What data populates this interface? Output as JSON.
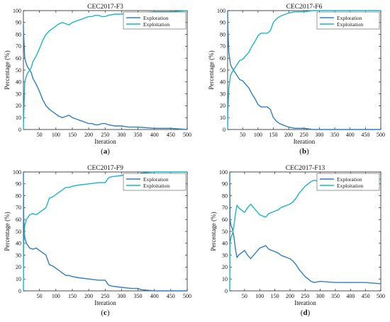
{
  "colors": {
    "exploration": "#2f7fbf",
    "exploitation": "#17b7c8"
  },
  "chart_data": [
    {
      "type": "line",
      "title": "CEC2017-F3",
      "caption_letter": "a",
      "xlabel": "Iteration",
      "ylabel": "Percentage (%)",
      "xlim": [
        1,
        500
      ],
      "ylim": [
        0,
        100
      ],
      "xticks": [
        50,
        100,
        150,
        200,
        250,
        300,
        350,
        400,
        450,
        500
      ],
      "yticks": [
        0,
        10,
        20,
        30,
        40,
        50,
        60,
        70,
        80,
        90,
        100
      ],
      "grid": false,
      "legend": "top-right",
      "series": [
        {
          "name": "Exploration",
          "x": [
            1,
            2,
            5,
            10,
            15,
            20,
            25,
            30,
            40,
            50,
            60,
            70,
            80,
            90,
            100,
            110,
            120,
            130,
            140,
            150,
            160,
            170,
            180,
            190,
            200,
            210,
            220,
            230,
            240,
            250,
            260,
            280,
            300,
            320,
            350,
            400,
            450,
            500
          ],
          "values": [
            88,
            78,
            60,
            55,
            52,
            50,
            48,
            43,
            38,
            32,
            25,
            20,
            17,
            15,
            13,
            11,
            10,
            11,
            12,
            10,
            9,
            8,
            7,
            6,
            5,
            5,
            4,
            4,
            5,
            5,
            4,
            3,
            3,
            2,
            2,
            1,
            1,
            0
          ]
        },
        {
          "name": "Exploitation",
          "x": [
            1,
            2,
            5,
            10,
            15,
            20,
            25,
            30,
            40,
            50,
            60,
            70,
            80,
            90,
            100,
            110,
            120,
            130,
            140,
            150,
            160,
            170,
            180,
            190,
            200,
            210,
            220,
            230,
            240,
            250,
            260,
            280,
            300,
            320,
            350,
            400,
            450,
            500
          ],
          "values": [
            0,
            12,
            40,
            45,
            48,
            50,
            52,
            57,
            62,
            68,
            75,
            80,
            83,
            85,
            87,
            89,
            90,
            89,
            88,
            90,
            91,
            92,
            93,
            94,
            95,
            95,
            96,
            96,
            95,
            95,
            96,
            97,
            97,
            98,
            98,
            99,
            99,
            100
          ]
        }
      ]
    },
    {
      "type": "line",
      "title": "CEC2017-F6",
      "caption_letter": "b",
      "xlabel": "Iteration",
      "ylabel": "Percentage (%)",
      "xlim": [
        1,
        500
      ],
      "ylim": [
        0,
        100
      ],
      "xticks": [
        50,
        100,
        150,
        200,
        250,
        300,
        350,
        400,
        450,
        500
      ],
      "yticks": [
        0,
        10,
        20,
        30,
        40,
        50,
        60,
        70,
        80,
        90,
        100
      ],
      "grid": false,
      "legend": "top-right",
      "series": [
        {
          "name": "Exploration",
          "x": [
            1,
            2,
            5,
            10,
            15,
            20,
            30,
            40,
            50,
            60,
            70,
            80,
            90,
            100,
            110,
            120,
            130,
            140,
            150,
            160,
            170,
            180,
            190,
            200,
            220,
            250,
            280,
            300,
            350,
            400,
            450,
            500
          ],
          "values": [
            100,
            85,
            65,
            55,
            52,
            50,
            46,
            42,
            41,
            38,
            35,
            30,
            26,
            21,
            19,
            19,
            19,
            17,
            10,
            7,
            5,
            4,
            3,
            2,
            1,
            1,
            0,
            0,
            0,
            0,
            0,
            0
          ]
        },
        {
          "name": "Exploitation",
          "x": [
            1,
            2,
            5,
            10,
            15,
            20,
            30,
            40,
            50,
            60,
            70,
            80,
            90,
            100,
            110,
            120,
            130,
            140,
            150,
            160,
            170,
            180,
            190,
            200,
            220,
            250,
            280,
            300,
            350,
            400,
            450,
            500
          ],
          "values": [
            0,
            15,
            35,
            45,
            48,
            50,
            54,
            58,
            59,
            62,
            65,
            70,
            74,
            79,
            81,
            81,
            81,
            83,
            90,
            93,
            95,
            96,
            97,
            98,
            99,
            99,
            100,
            100,
            100,
            100,
            100,
            100
          ]
        }
      ]
    },
    {
      "type": "line",
      "title": "CEC2017-F9",
      "caption_letter": "c",
      "xlabel": "Iteration",
      "ylabel": "Percentage (%)",
      "xlim": [
        1,
        500
      ],
      "ylim": [
        0,
        100
      ],
      "xticks": [
        50,
        100,
        150,
        200,
        250,
        300,
        350,
        400,
        450,
        500
      ],
      "yticks": [
        0,
        10,
        20,
        30,
        40,
        50,
        60,
        70,
        80,
        90,
        100
      ],
      "grid": false,
      "legend": "top-right",
      "series": [
        {
          "name": "Exploration",
          "x": [
            1,
            2,
            5,
            10,
            20,
            30,
            40,
            50,
            60,
            70,
            80,
            90,
            100,
            110,
            120,
            130,
            140,
            150,
            170,
            200,
            230,
            250,
            260,
            270,
            300,
            330,
            350,
            360,
            400,
            450,
            500
          ],
          "values": [
            100,
            60,
            45,
            40,
            36,
            35,
            36,
            34,
            32,
            30,
            22,
            21,
            19,
            17,
            15,
            13,
            13,
            12,
            11,
            10,
            9,
            9,
            5,
            4,
            3,
            2,
            2,
            1,
            0,
            0,
            0
          ]
        },
        {
          "name": "Exploitation",
          "x": [
            1,
            2,
            5,
            10,
            20,
            30,
            40,
            50,
            60,
            70,
            80,
            90,
            100,
            110,
            120,
            130,
            140,
            150,
            170,
            200,
            230,
            250,
            260,
            270,
            300,
            330,
            350,
            360,
            400,
            450,
            500
          ],
          "values": [
            0,
            40,
            55,
            60,
            64,
            65,
            64,
            66,
            68,
            70,
            78,
            79,
            81,
            83,
            85,
            87,
            87,
            88,
            89,
            90,
            91,
            91,
            95,
            96,
            97,
            98,
            98,
            99,
            100,
            100,
            100
          ]
        }
      ]
    },
    {
      "type": "line",
      "title": "CEC2017-F13",
      "caption_letter": "d",
      "xlabel": "Iteration",
      "ylabel": "Percentage (%)",
      "xlim": [
        1,
        500
      ],
      "ylim": [
        0,
        100
      ],
      "xticks": [
        50,
        100,
        150,
        200,
        250,
        300,
        350,
        400,
        450,
        500
      ],
      "yticks": [
        0,
        10,
        20,
        30,
        40,
        50,
        60,
        70,
        80,
        90,
        100
      ],
      "grid": false,
      "legend": "top-right",
      "series": [
        {
          "name": "Exploration",
          "x": [
            1,
            2,
            5,
            10,
            15,
            20,
            25,
            30,
            40,
            50,
            60,
            70,
            80,
            90,
            100,
            110,
            120,
            130,
            140,
            150,
            160,
            170,
            180,
            190,
            200,
            210,
            220,
            230,
            240,
            250,
            260,
            270,
            280,
            300,
            350,
            400,
            450,
            500
          ],
          "values": [
            100,
            60,
            55,
            52,
            45,
            35,
            28,
            30,
            32,
            34,
            30,
            27,
            30,
            33,
            36,
            37,
            38,
            35,
            34,
            33,
            32,
            30,
            29,
            28,
            27,
            25,
            22,
            18,
            15,
            12,
            10,
            8,
            7,
            8,
            7,
            7,
            7,
            6
          ]
        },
        {
          "name": "Exploitation",
          "x": [
            1,
            2,
            5,
            10,
            15,
            20,
            25,
            30,
            40,
            50,
            60,
            70,
            80,
            90,
            100,
            110,
            120,
            130,
            140,
            150,
            160,
            170,
            180,
            190,
            200,
            210,
            220,
            230,
            240,
            250,
            260,
            270,
            280,
            300,
            350,
            400,
            450,
            500
          ],
          "values": [
            0,
            40,
            45,
            48,
            55,
            65,
            72,
            70,
            68,
            66,
            70,
            73,
            70,
            67,
            64,
            63,
            62,
            65,
            66,
            67,
            68,
            70,
            71,
            72,
            73,
            75,
            78,
            82,
            85,
            88,
            90,
            92,
            93,
            92,
            93,
            93,
            93,
            94
          ]
        }
      ]
    }
  ]
}
